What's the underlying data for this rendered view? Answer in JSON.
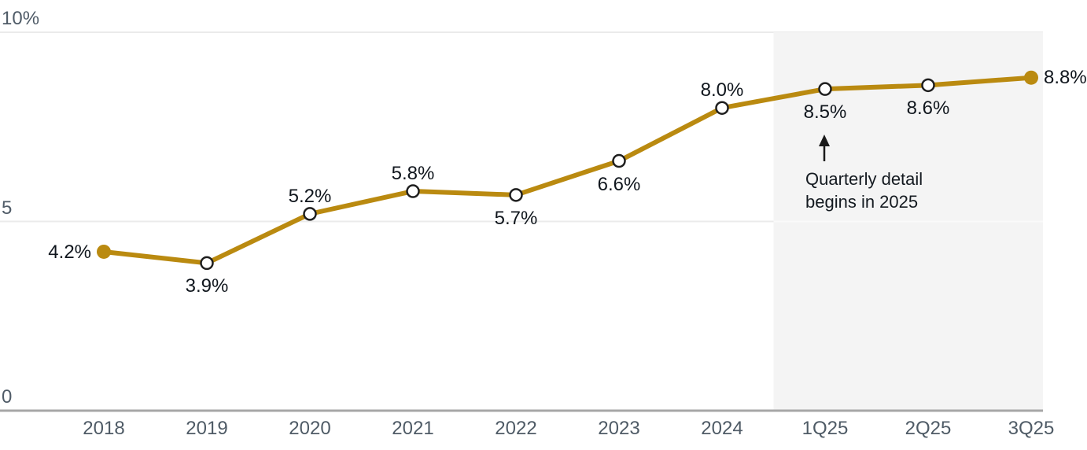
{
  "colors": {
    "line": "#BA8A10",
    "marker_filled": "#BA8A10",
    "marker_open_fill": "#ffffff",
    "marker_stroke": "#1f1f1f",
    "highlight_band": "#f4f4f4",
    "gridline": "#ebebeb",
    "gridline_on_band": "#fafafa",
    "axis_line": "#a7a7a7",
    "tick_label": "#4f5b66",
    "data_label": "#10161d",
    "annotation_arrow": "#1a1a1a"
  },
  "chart_data": {
    "type": "line",
    "categories": [
      "2018",
      "2019",
      "2020",
      "2021",
      "2022",
      "2023",
      "2024",
      "1Q25",
      "2Q25",
      "3Q25"
    ],
    "values": [
      4.2,
      3.9,
      5.2,
      5.8,
      5.7,
      6.6,
      8.0,
      8.5,
      8.6,
      8.8
    ],
    "data_labels": [
      "4.2%",
      "3.9%",
      "5.2%",
      "5.8%",
      "5.7%",
      "6.6%",
      "8.0%",
      "8.5%",
      "8.6%",
      "8.8%"
    ],
    "label_side": [
      "left",
      "below",
      "above",
      "above",
      "below",
      "below",
      "above",
      "below",
      "below",
      "right"
    ],
    "marker_style": [
      "filled",
      "open",
      "open",
      "open",
      "open",
      "open",
      "open",
      "open",
      "open",
      "filled"
    ],
    "title": "",
    "xlabel": "",
    "ylabel": "",
    "ylim": [
      0,
      10
    ],
    "y_axis_ticks": [
      {
        "value": 0,
        "label": "0"
      },
      {
        "value": 5,
        "label": "5"
      },
      {
        "value": 10,
        "label": "10%"
      }
    ],
    "grid": "horizontal",
    "legend": "none",
    "highlight_band": {
      "from_between": [
        "2024",
        "1Q25"
      ],
      "to": "right-edge"
    },
    "annotation": {
      "line1": "Quarterly detail",
      "line2": "begins in 2025",
      "arrow": "up",
      "target_category": "1Q25"
    }
  }
}
